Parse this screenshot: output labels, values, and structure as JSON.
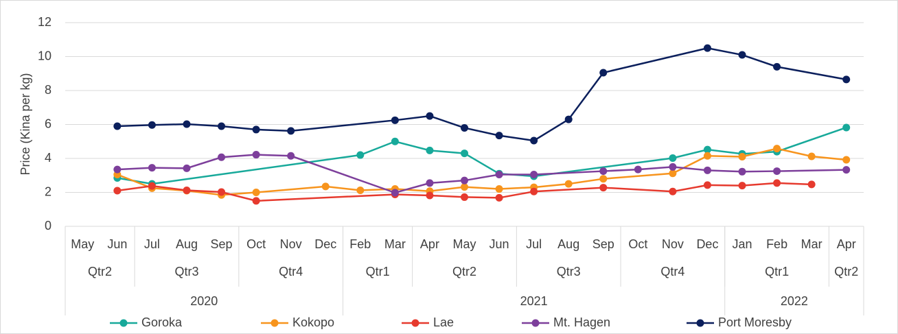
{
  "chart_data": {
    "type": "line",
    "span_gaps": true,
    "grid": true,
    "legend": "bottom",
    "ylabel": "Price (Kina per kg)",
    "ylim": [
      0,
      12
    ],
    "yticks": [
      0,
      2,
      4,
      6,
      8,
      10,
      12
    ],
    "categories": [
      "May",
      "Jun",
      "Jul",
      "Aug",
      "Sep",
      "Oct",
      "Nov",
      "Dec",
      "Feb",
      "Mar",
      "Apr",
      "May",
      "Jun",
      "Jul",
      "Aug",
      "Sep",
      "Oct",
      "Nov",
      "Dec",
      "Jan",
      "Feb",
      "Mar",
      "Apr"
    ],
    "quarters": [
      "Qtr2",
      null,
      "Qtr3",
      null,
      null,
      "Qtr4",
      null,
      null,
      "Qtr1",
      null,
      "Qtr2",
      null,
      null,
      "Qtr3",
      null,
      null,
      "Qtr4",
      null,
      null,
      "Qtr1",
      null,
      null,
      "Qtr2"
    ],
    "years": [
      "2020",
      null,
      null,
      null,
      null,
      null,
      null,
      null,
      "2021",
      null,
      null,
      null,
      null,
      null,
      null,
      null,
      null,
      null,
      null,
      "2022",
      null,
      null,
      null
    ],
    "series": [
      {
        "name": "Goroka",
        "color": "#17a99a",
        "values": [
          null,
          2.85,
          2.5,
          null,
          null,
          null,
          null,
          null,
          4.2,
          5.0,
          4.47,
          4.3,
          3.1,
          2.95,
          null,
          null,
          null,
          4.02,
          4.52,
          4.27,
          4.4,
          null,
          5.82
        ]
      },
      {
        "name": "Kokopo",
        "color": "#f7941d",
        "values": [
          null,
          3.05,
          2.25,
          2.1,
          1.85,
          2.0,
          null,
          2.35,
          2.12,
          2.2,
          2.07,
          2.32,
          2.2,
          2.3,
          2.5,
          2.8,
          null,
          3.12,
          4.15,
          4.1,
          4.58,
          4.12,
          3.92
        ]
      },
      {
        "name": "Lae",
        "color": "#e63a2e",
        "values": [
          null,
          2.1,
          2.38,
          2.12,
          2.02,
          1.5,
          null,
          null,
          null,
          1.88,
          1.82,
          1.72,
          1.68,
          2.05,
          null,
          2.28,
          null,
          2.05,
          2.43,
          2.4,
          2.55,
          2.47,
          null
        ]
      },
      {
        "name": "Mt. Hagen",
        "color": "#7d3f9b",
        "values": [
          null,
          3.35,
          3.45,
          3.42,
          4.07,
          4.22,
          4.15,
          null,
          null,
          1.98,
          2.55,
          2.7,
          3.05,
          3.05,
          null,
          3.25,
          3.35,
          3.5,
          3.3,
          3.22,
          3.25,
          null,
          3.33
        ]
      },
      {
        "name": "Port Moresby",
        "color": "#0b1f5c",
        "values": [
          null,
          5.9,
          5.97,
          6.02,
          5.9,
          5.7,
          5.62,
          null,
          null,
          6.25,
          6.5,
          5.8,
          5.35,
          5.05,
          6.3,
          9.05,
          null,
          null,
          10.5,
          10.1,
          9.4,
          null,
          8.65
        ]
      }
    ]
  }
}
